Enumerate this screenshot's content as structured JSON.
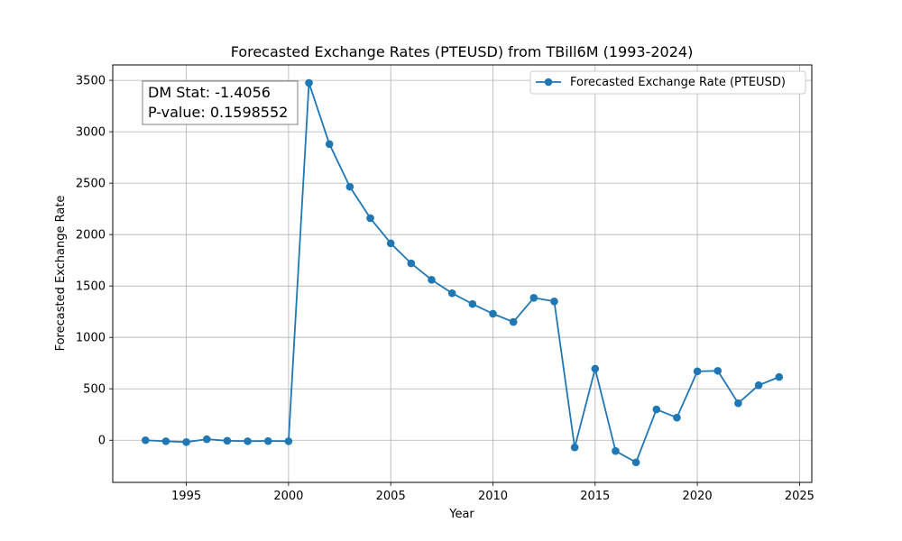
{
  "chart_data": {
    "type": "line",
    "title": "Forecasted Exchange Rates (PTEUSD) from TBill6M (1993-2024)",
    "xlabel": "Year",
    "ylabel": "Forecasted Exchange Rate",
    "xlim": [
      1991.4,
      2025.6
    ],
    "ylim": [
      -410,
      3650
    ],
    "xticks": [
      1995,
      2000,
      2005,
      2010,
      2015,
      2020,
      2025
    ],
    "yticks": [
      0,
      500,
      1000,
      1500,
      2000,
      2500,
      3000,
      3500
    ],
    "grid": true,
    "legend_position": "top-right",
    "series": [
      {
        "name": "Forecasted Exchange Rate (PTEUSD)",
        "color": "#1f77b4",
        "marker": "circle",
        "x": [
          1993,
          1994,
          1995,
          1996,
          1997,
          1998,
          1999,
          2000,
          2001,
          2002,
          2003,
          2004,
          2005,
          2006,
          2007,
          2008,
          2009,
          2010,
          2011,
          2012,
          2013,
          2014,
          2015,
          2016,
          2017,
          2018,
          2019,
          2020,
          2021,
          2022,
          2023,
          2024
        ],
        "y": [
          0,
          -10,
          -18,
          10,
          -5,
          -10,
          -8,
          -10,
          3475,
          2880,
          2465,
          2160,
          1915,
          1720,
          1560,
          1430,
          1325,
          1230,
          1150,
          1385,
          1350,
          -70,
          695,
          -105,
          -215,
          300,
          220,
          670,
          675,
          360,
          535,
          615
        ]
      }
    ],
    "annotation": {
      "line1": "DM Stat: -1.4056",
      "line2": "P-value: 0.1598552"
    }
  }
}
